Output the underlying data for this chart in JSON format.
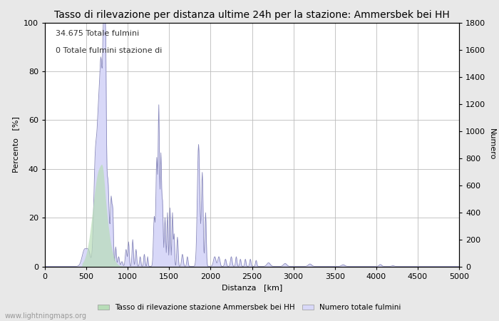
{
  "title": "Tasso di rilevazione per distanza ultime 24h per la stazione: Ammersbek bei HH",
  "xlabel": "Distanza   [km]",
  "ylabel_left": "Percento   [%]",
  "ylabel_right": "Numero",
  "annotation_line1": "34.675 Totale fulmini",
  "annotation_line2": "0 Totale fulmini stazione di",
  "watermark": "www.lightningmaps.org",
  "xlim": [
    0,
    5000
  ],
  "ylim_left": [
    0,
    100
  ],
  "ylim_right": [
    0,
    1800
  ],
  "xticks": [
    0,
    500,
    1000,
    1500,
    2000,
    2500,
    3000,
    3500,
    4000,
    4500,
    5000
  ],
  "yticks_left": [
    0,
    20,
    40,
    60,
    80,
    100
  ],
  "yticks_right": [
    0,
    200,
    400,
    600,
    800,
    1000,
    1200,
    1400,
    1600,
    1800
  ],
  "bg_color": "#e8e8e8",
  "plot_bg_color": "#ffffff",
  "grid_color": "#bbbbbb",
  "fill_blue_color": "#d8d8f8",
  "fill_green_color": "#b8ddb8",
  "line_blue_color": "#8888bb",
  "legend_label_green": "Tasso di rilevazione stazione Ammersbek bei HH",
  "legend_label_blue": "Numero totale fulmini",
  "title_fontsize": 10,
  "label_fontsize": 8,
  "tick_fontsize": 8,
  "annotation_fontsize": 8
}
